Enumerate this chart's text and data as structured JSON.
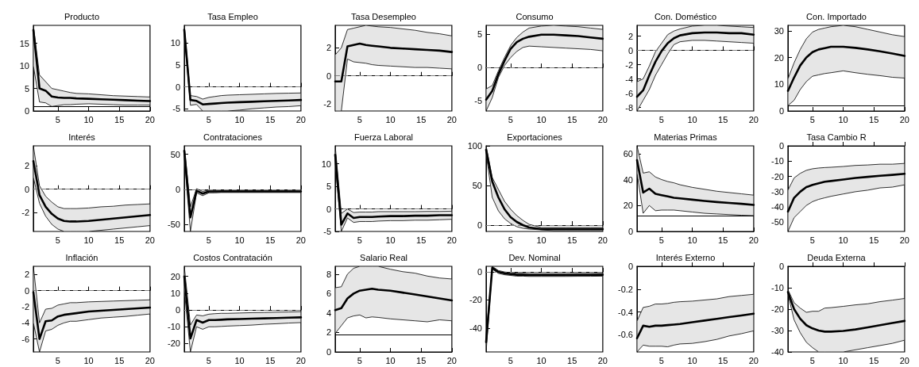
{
  "chart_data": [
    {
      "type": "line",
      "title": "Producto",
      "x": [
        1,
        2,
        3,
        4,
        5,
        6,
        7,
        8,
        10,
        12,
        14,
        16,
        18,
        20
      ],
      "xlim": [
        1,
        20
      ],
      "xticks": [
        5,
        10,
        15,
        20
      ],
      "ylim": [
        0,
        19
      ],
      "yticks": [
        0,
        5,
        10,
        15
      ],
      "series": [
        {
          "color": "#000000",
          "values": [
            18,
            5,
            4.5,
            3.2,
            3,
            2.9,
            2.9,
            2.8,
            2.7,
            2.6,
            2.5,
            2.4,
            2.3,
            2.2
          ],
          "upper": [
            19,
            8,
            6.5,
            5,
            4.7,
            4.4,
            4.1,
            3.9,
            3.8,
            3.6,
            3.4,
            3.3,
            3.2,
            3.1
          ],
          "lower": [
            10,
            2,
            1.8,
            1,
            1.2,
            1.4,
            1.4,
            1.5,
            1.6,
            1.5,
            1.4,
            1.3,
            1.3,
            1.3
          ]
        }
      ],
      "ref_lines": [
        {
          "axis": "y",
          "value": 1,
          "line_style": "solid",
          "color": "#000000"
        }
      ]
    },
    {
      "type": "line",
      "title": "Tasa Empleo",
      "x": [
        1,
        2,
        3,
        4,
        5,
        6,
        7,
        8,
        10,
        12,
        14,
        16,
        18,
        20
      ],
      "xlim": [
        1,
        20
      ],
      "xticks": [
        5,
        10,
        15,
        20
      ],
      "ylim": [
        -5.5,
        14
      ],
      "yticks": [
        -5,
        0,
        5,
        10
      ],
      "series": [
        {
          "color": "#000000",
          "values": [
            13,
            -3,
            -3.2,
            -4,
            -3.9,
            -3.8,
            -3.7,
            -3.6,
            -3.5,
            -3.4,
            -3.3,
            -3.2,
            -3.1,
            -3
          ],
          "upper": [
            14,
            -2,
            -2.2,
            -2.8,
            -2.4,
            -2.2,
            -2,
            -1.9,
            -1.8,
            -1.7,
            -1.6,
            -1.5,
            -1.45,
            -1.4
          ],
          "lower": [
            12,
            -4.2,
            -4,
            -5.5,
            -5.5,
            -5.5,
            -5.5,
            -5.5,
            -5.3,
            -5,
            -4.8,
            -4.6,
            -4.5,
            -4.3
          ]
        }
      ],
      "ref_lines": [
        {
          "axis": "y",
          "value": 0,
          "line_style": "dashed",
          "color": "#808080"
        }
      ]
    },
    {
      "type": "line",
      "title": "Tasa Desempleo",
      "x": [
        1,
        2,
        3,
        4,
        5,
        6,
        7,
        8,
        10,
        12,
        14,
        16,
        18,
        20
      ],
      "xlim": [
        1,
        20
      ],
      "xticks": [
        5,
        10,
        15,
        20
      ],
      "ylim": [
        -2.5,
        3.6
      ],
      "yticks": [
        -2,
        0,
        2
      ],
      "series": [
        {
          "color": "#000000",
          "values": [
            -0.4,
            -0.4,
            2.1,
            2.2,
            2.3,
            2.2,
            2.15,
            2.1,
            2.0,
            1.95,
            1.9,
            1.85,
            1.8,
            1.7
          ],
          "upper": [
            1.5,
            2,
            3.3,
            3.4,
            3.5,
            3.6,
            3.55,
            3.5,
            3.45,
            3.35,
            3.25,
            3.1,
            3.0,
            2.85
          ],
          "lower": [
            -2.5,
            -2.5,
            1.2,
            1.0,
            0.95,
            0.9,
            0.8,
            0.75,
            0.7,
            0.65,
            0.6,
            0.6,
            0.55,
            0.5
          ]
        }
      ],
      "ref_lines": [
        {
          "axis": "y",
          "value": 0,
          "line_style": "dashed",
          "color": "#808080"
        }
      ]
    },
    {
      "type": "line",
      "title": "Consumo",
      "x": [
        1,
        2,
        3,
        4,
        5,
        6,
        7,
        8,
        10,
        12,
        14,
        16,
        18,
        20
      ],
      "xlim": [
        1,
        20
      ],
      "xticks": [
        5,
        10,
        15,
        20
      ],
      "ylim": [
        -6.5,
        6.3
      ],
      "yticks": [
        -5,
        0,
        5
      ],
      "series": [
        {
          "color": "#000000",
          "values": [
            -4.8,
            -3.5,
            -1,
            1,
            2.8,
            3.8,
            4.3,
            4.6,
            4.9,
            4.9,
            4.8,
            4.7,
            4.5,
            4.3
          ],
          "upper": [
            -3.2,
            -2.7,
            -0.5,
            1.5,
            3.3,
            4.5,
            5.3,
            5.9,
            6.2,
            6.3,
            6.2,
            6.1,
            5.9,
            5.7
          ],
          "lower": [
            -6.5,
            -4.5,
            -1.5,
            0.3,
            1.5,
            2.4,
            3,
            3.2,
            3.1,
            3,
            2.9,
            2.8,
            2.7,
            2.5
          ]
        }
      ],
      "ref_lines": [
        {
          "axis": "y",
          "value": 0,
          "line_style": "dashed",
          "color": "#808080"
        }
      ]
    },
    {
      "type": "line",
      "title": "Con. Doméstico",
      "x": [
        1,
        2,
        3,
        4,
        5,
        6,
        7,
        8,
        10,
        12,
        14,
        16,
        18,
        20
      ],
      "xlim": [
        1,
        20
      ],
      "xticks": [
        5,
        10,
        15,
        20
      ],
      "ylim": [
        -8.5,
        3.5
      ],
      "yticks": [
        -8,
        -6,
        -4,
        -2,
        0,
        2
      ],
      "series": [
        {
          "color": "#000000",
          "values": [
            -6.5,
            -5.6,
            -3.5,
            -1.6,
            -0.1,
            1,
            1.7,
            2.1,
            2.4,
            2.5,
            2.5,
            2.4,
            2.4,
            2.2
          ],
          "upper": [
            -4.4,
            -4,
            -2.2,
            -0.2,
            1,
            2.2,
            2.7,
            3,
            3.4,
            3.5,
            3.5,
            3.4,
            3.3,
            3.2
          ],
          "lower": [
            -8.5,
            -7,
            -5.5,
            -3.5,
            -2,
            -0.5,
            0.8,
            1.2,
            1.4,
            1.4,
            1.3,
            1.2,
            1.1,
            1.0
          ]
        }
      ],
      "ref_lines": [
        {
          "axis": "y",
          "value": 0,
          "line_style": "dashed",
          "color": "#808080"
        }
      ]
    },
    {
      "type": "line",
      "title": "Con. Importado",
      "x": [
        1,
        2,
        3,
        4,
        5,
        6,
        7,
        8,
        10,
        12,
        14,
        16,
        18,
        20
      ],
      "xlim": [
        1,
        20
      ],
      "xticks": [
        5,
        10,
        15,
        20
      ],
      "ylim": [
        0,
        32
      ],
      "yticks": [
        0,
        10,
        20,
        30
      ],
      "series": [
        {
          "color": "#000000",
          "values": [
            7.5,
            12.5,
            17,
            20,
            22,
            23,
            23.5,
            24,
            24,
            23.6,
            23,
            22.3,
            21.5,
            20.6
          ],
          "upper": [
            12,
            18,
            23,
            27,
            29.5,
            30.5,
            31,
            31.5,
            32,
            31.5,
            30.5,
            29.5,
            28.5,
            27.8
          ],
          "lower": [
            2,
            4,
            8,
            11,
            13,
            13.5,
            14,
            14.3,
            15,
            14.3,
            13.7,
            13.2,
            12.6,
            12.3
          ]
        }
      ],
      "ref_lines": [
        {
          "axis": "y",
          "value": 2,
          "line_style": "solid",
          "color": "#000000"
        }
      ]
    },
    {
      "type": "line",
      "title": "Interés",
      "x": [
        1,
        2,
        3,
        4,
        5,
        6,
        7,
        8,
        10,
        12,
        14,
        16,
        18,
        20
      ],
      "xlim": [
        1,
        20
      ],
      "xticks": [
        5,
        10,
        15,
        20
      ],
      "ylim": [
        -3.6,
        3.7
      ],
      "yticks": [
        -2,
        0,
        2
      ],
      "series": [
        {
          "color": "#000000",
          "values": [
            2.4,
            -0.5,
            -1.5,
            -2.1,
            -2.5,
            -2.7,
            -2.75,
            -2.75,
            -2.7,
            -2.6,
            -2.5,
            -2.4,
            -2.3,
            -2.2
          ],
          "upper": [
            3.7,
            0.3,
            -0.6,
            -1.1,
            -1.5,
            -1.65,
            -1.65,
            -1.65,
            -1.6,
            -1.5,
            -1.45,
            -1.35,
            -1.3,
            -1.25
          ],
          "lower": [
            1,
            -1.2,
            -2.3,
            -3,
            -3.4,
            -3.6,
            -3.6,
            -3.6,
            -3.6,
            -3.5,
            -3.4,
            -3.3,
            -3.2,
            -3.1
          ]
        }
      ],
      "ref_lines": [
        {
          "axis": "y",
          "value": 0,
          "line_style": "dashed",
          "color": "#808080"
        }
      ]
    },
    {
      "type": "line",
      "title": "Contrataciones",
      "x": [
        1,
        2,
        3,
        4,
        5,
        6,
        7,
        8,
        10,
        12,
        14,
        16,
        18,
        20
      ],
      "xlim": [
        1,
        20
      ],
      "xticks": [
        5,
        10,
        15,
        20
      ],
      "ylim": [
        -60,
        62
      ],
      "yticks": [
        -50,
        0,
        50
      ],
      "series": [
        {
          "color": "#000000",
          "values": [
            55,
            -40,
            -2,
            -6,
            -3,
            -3,
            -3,
            -3,
            -3,
            -3,
            -3,
            -3,
            -3,
            -3
          ],
          "upper": [
            62,
            -25,
            1,
            -3,
            -1,
            -1,
            -1.5,
            -1.5,
            -1.5,
            -1.5,
            -1.5,
            -1.5,
            -1.5,
            -1
          ],
          "lower": [
            45,
            -60,
            -5,
            -9,
            -5,
            -5,
            -4.5,
            -4.5,
            -4.5,
            -4.5,
            -4.5,
            -4.5,
            -4.5,
            -4.5
          ]
        }
      ],
      "ref_lines": [
        {
          "axis": "y",
          "value": 0,
          "line_style": "dashed",
          "color": "#808080"
        }
      ]
    },
    {
      "type": "line",
      "title": "Fuerza Laboral",
      "x": [
        1,
        2,
        3,
        4,
        5,
        6,
        7,
        8,
        10,
        12,
        14,
        16,
        18,
        20
      ],
      "xlim": [
        1,
        20
      ],
      "xticks": [
        5,
        10,
        15,
        20
      ],
      "ylim": [
        -5,
        14
      ],
      "yticks": [
        -5,
        0,
        5,
        10
      ],
      "series": [
        {
          "color": "#000000",
          "values": [
            12,
            -3.5,
            -1,
            -2,
            -1.8,
            -1.8,
            -1.8,
            -1.7,
            -1.6,
            -1.6,
            -1.5,
            -1.5,
            -1.4,
            -1.4
          ],
          "upper": [
            14,
            -1,
            0,
            -0.8,
            -0.7,
            -0.7,
            -0.7,
            -0.6,
            -0.6,
            -0.6,
            -0.6,
            -0.55,
            -0.55,
            -0.5
          ],
          "lower": [
            10,
            -5,
            -2,
            -3,
            -2.8,
            -2.8,
            -2.8,
            -2.7,
            -2.6,
            -2.6,
            -2.5,
            -2.5,
            -2.4,
            -2.3
          ]
        }
      ],
      "ref_lines": [
        {
          "axis": "y",
          "value": 0,
          "line_style": "dashed",
          "color": "#808080"
        }
      ]
    },
    {
      "type": "line",
      "title": "Exportaciones",
      "x": [
        1,
        2,
        3,
        4,
        5,
        6,
        7,
        8,
        10,
        12,
        14,
        16,
        18,
        20
      ],
      "xlim": [
        1,
        20
      ],
      "xticks": [
        5,
        10,
        15,
        20
      ],
      "ylim": [
        -8,
        100
      ],
      "yticks": [
        0,
        50,
        100
      ],
      "series": [
        {
          "color": "#000000",
          "values": [
            95,
            55,
            35,
            20,
            10,
            4,
            0,
            -3,
            -5,
            -5,
            -5,
            -5,
            -5,
            -5
          ],
          "upper": [
            100,
            60,
            45,
            30,
            20,
            12,
            6,
            1,
            -3,
            -3,
            -3,
            -3,
            -3,
            -3
          ],
          "lower": [
            90,
            35,
            18,
            8,
            2,
            -2,
            -4,
            -5,
            -6,
            -7,
            -7,
            -7,
            -7,
            -7
          ]
        }
      ],
      "ref_lines": [
        {
          "axis": "y",
          "value": 0,
          "line_style": "dashed",
          "color": "#808080"
        }
      ]
    },
    {
      "type": "line",
      "title": "Materias Primas",
      "x": [
        1,
        2,
        3,
        4,
        5,
        6,
        7,
        8,
        10,
        12,
        14,
        16,
        18,
        20
      ],
      "xlim": [
        1,
        20
      ],
      "xticks": [
        5,
        10,
        15,
        20
      ],
      "ylim": [
        0,
        66
      ],
      "yticks": [
        0,
        20,
        40,
        60
      ],
      "series": [
        {
          "color": "#000000",
          "values": [
            55,
            30,
            33,
            29,
            28,
            27,
            26,
            25.5,
            24.5,
            23.5,
            22.7,
            22,
            21.3,
            20.5
          ],
          "upper": [
            66,
            45,
            46,
            42,
            40,
            38.5,
            37.5,
            36,
            34,
            32.5,
            31,
            30,
            29,
            28
          ],
          "lower": [
            45,
            14,
            20,
            16,
            16.5,
            16.5,
            16.5,
            16,
            15,
            14,
            13.5,
            13,
            12.5,
            12.2
          ]
        }
      ],
      "ref_lines": [
        {
          "axis": "y",
          "value": 12,
          "line_style": "solid",
          "color": "#000000"
        }
      ]
    },
    {
      "type": "line",
      "title": "Tasa Cambio R",
      "x": [
        1,
        2,
        3,
        4,
        5,
        6,
        7,
        8,
        10,
        12,
        14,
        16,
        18,
        20
      ],
      "xlim": [
        1,
        20
      ],
      "xticks": [
        5,
        10,
        15,
        20
      ],
      "ylim": [
        -56,
        0
      ],
      "yticks": [
        -50,
        -40,
        -30,
        -20,
        -10,
        0
      ],
      "series": [
        {
          "color": "#000000",
          "values": [
            -43,
            -34,
            -30,
            -27,
            -25.5,
            -24.5,
            -23.5,
            -23,
            -22,
            -21,
            -20.3,
            -19.6,
            -19,
            -18.3
          ],
          "upper": [
            -29,
            -21,
            -18,
            -16,
            -15,
            -14.5,
            -14.2,
            -14,
            -13.5,
            -12.8,
            -12.5,
            -12,
            -12,
            -11.5
          ],
          "lower": [
            -56,
            -47,
            -43,
            -39,
            -36.5,
            -35,
            -34,
            -33,
            -31.5,
            -30,
            -29,
            -27.5,
            -27,
            -25.5
          ]
        }
      ]
    },
    {
      "type": "line",
      "title": "Inflación",
      "x": [
        1,
        2,
        3,
        4,
        5,
        6,
        7,
        8,
        10,
        12,
        14,
        16,
        18,
        20
      ],
      "xlim": [
        1,
        20
      ],
      "xticks": [
        5,
        10,
        15,
        20
      ],
      "ylim": [
        -7.6,
        3
      ],
      "yticks": [
        -6,
        -4,
        -2,
        0,
        2
      ],
      "series": [
        {
          "color": "#000000",
          "values": [
            -0.2,
            -6,
            -3.8,
            -3.7,
            -3.2,
            -3,
            -2.9,
            -2.8,
            -2.6,
            -2.5,
            -2.4,
            -2.3,
            -2.2,
            -2.1
          ],
          "upper": [
            3,
            -4,
            -2.3,
            -2.2,
            -1.8,
            -1.65,
            -1.5,
            -1.5,
            -1.4,
            -1.35,
            -1.3,
            -1.25,
            -1.2,
            -1.15
          ],
          "lower": [
            -4,
            -7.6,
            -5,
            -4.8,
            -4.3,
            -4,
            -3.8,
            -3.8,
            -3.6,
            -3.4,
            -3.3,
            -3.2,
            -3.05,
            -2.9
          ]
        }
      ],
      "ref_lines": [
        {
          "axis": "y",
          "value": 0,
          "line_style": "dashed",
          "color": "#808080"
        }
      ]
    },
    {
      "type": "line",
      "title": "Costos Contratación",
      "x": [
        1,
        2,
        3,
        4,
        5,
        6,
        7,
        8,
        10,
        12,
        14,
        16,
        18,
        20
      ],
      "xlim": [
        1,
        20
      ],
      "xticks": [
        5,
        10,
        15,
        20
      ],
      "ylim": [
        -25,
        26
      ],
      "yticks": [
        -20,
        -10,
        0,
        10,
        20
      ],
      "series": [
        {
          "color": "#000000",
          "values": [
            20,
            -17,
            -6,
            -7.5,
            -6,
            -6,
            -5.8,
            -5.6,
            -5.4,
            -5.2,
            -5,
            -4.8,
            -4.6,
            -4.4
          ],
          "upper": [
            26,
            -9,
            -3,
            -3.5,
            -2.5,
            -2.2,
            -2,
            -2,
            -1.8,
            -1.6,
            -1.5,
            -1.3,
            -1.2,
            -1
          ],
          "lower": [
            12,
            -25,
            -10,
            -11.5,
            -10,
            -10,
            -9.8,
            -9.6,
            -9.3,
            -9,
            -8.5,
            -8.2,
            -7.8,
            -7.5
          ]
        }
      ],
      "ref_lines": [
        {
          "axis": "y",
          "value": 0,
          "line_style": "dashed",
          "color": "#808080"
        }
      ]
    },
    {
      "type": "line",
      "title": "Salario Real",
      "x": [
        1,
        2,
        3,
        4,
        5,
        6,
        7,
        8,
        10,
        12,
        14,
        16,
        18,
        20
      ],
      "xlim": [
        1,
        20
      ],
      "xticks": [
        5,
        10,
        15,
        20
      ],
      "ylim": [
        0,
        8.8
      ],
      "yticks": [
        0,
        2,
        4,
        6,
        8
      ],
      "series": [
        {
          "color": "#000000",
          "values": [
            4.3,
            4.5,
            5.5,
            6,
            6.3,
            6.4,
            6.5,
            6.4,
            6.3,
            6.1,
            5.9,
            5.7,
            5.5,
            5.3
          ],
          "upper": [
            6.6,
            6.7,
            8,
            8.6,
            8.8,
            8.8,
            8.8,
            8.8,
            8.5,
            8.25,
            8.1,
            7.8,
            7.6,
            7.5
          ],
          "lower": [
            1.9,
            2.7,
            3.5,
            3.7,
            3.8,
            3.5,
            3.6,
            3.55,
            3.4,
            3.3,
            3.2,
            3.1,
            3.3,
            3.2
          ]
        }
      ],
      "ref_lines": [
        {
          "axis": "y",
          "value": 1.8,
          "line_style": "solid",
          "color": "#000000"
        }
      ]
    },
    {
      "type": "line",
      "title": "Dev. Nominal",
      "x": [
        1,
        2,
        3,
        4,
        5,
        6,
        7,
        8,
        10,
        12,
        14,
        16,
        18,
        20
      ],
      "xlim": [
        1,
        20
      ],
      "xticks": [
        5,
        10,
        15,
        20
      ],
      "ylim": [
        -57,
        4
      ],
      "yticks": [
        -40,
        -20,
        0
      ],
      "series": [
        {
          "color": "#000000",
          "values": [
            -50,
            3,
            0,
            -1,
            -1.5,
            -2,
            -2,
            -2.2,
            -2.2,
            -2.2,
            -2.2,
            -2.1,
            -2.1,
            -2
          ],
          "upper": [
            -45,
            4,
            1,
            0,
            -0.5,
            -1,
            -1,
            -1.2,
            -1.2,
            -1.2,
            -1.2,
            -1.1,
            -1.1,
            -1
          ],
          "lower": [
            -57,
            2,
            -1,
            -2,
            -2.5,
            -3,
            -3,
            -3.2,
            -3.2,
            -3.2,
            -3.2,
            -3.1,
            -3.1,
            -3
          ]
        }
      ],
      "ref_lines": [
        {
          "axis": "y",
          "value": 0,
          "line_style": "dashed",
          "color": "#808080"
        }
      ]
    },
    {
      "type": "line",
      "title": "Interés Externo",
      "x": [
        1,
        2,
        3,
        4,
        5,
        6,
        7,
        8,
        10,
        12,
        14,
        16,
        18,
        20
      ],
      "xlim": [
        1,
        20
      ],
      "xticks": [
        5,
        10,
        15,
        20
      ],
      "ylim": [
        -0.75,
        0
      ],
      "yticks": [
        -0.6,
        -0.4,
        -0.2,
        0
      ],
      "series": [
        {
          "color": "#000000",
          "values": [
            -0.63,
            -0.52,
            -0.53,
            -0.52,
            -0.52,
            -0.515,
            -0.51,
            -0.505,
            -0.49,
            -0.475,
            -0.46,
            -0.445,
            -0.43,
            -0.415
          ],
          "upper": [
            -0.48,
            -0.36,
            -0.35,
            -0.33,
            -0.33,
            -0.325,
            -0.315,
            -0.31,
            -0.305,
            -0.295,
            -0.285,
            -0.265,
            -0.255,
            -0.245
          ],
          "lower": [
            -0.75,
            -0.69,
            -0.7,
            -0.7,
            -0.7,
            -0.705,
            -0.69,
            -0.68,
            -0.675,
            -0.66,
            -0.64,
            -0.61,
            -0.59,
            -0.565
          ]
        }
      ]
    },
    {
      "type": "line",
      "title": "Deuda Externa",
      "x": [
        1,
        2,
        3,
        4,
        5,
        6,
        7,
        8,
        10,
        12,
        14,
        16,
        18,
        20
      ],
      "xlim": [
        1,
        20
      ],
      "xticks": [
        5,
        10,
        15,
        20
      ],
      "ylim": [
        -40,
        0
      ],
      "yticks": [
        -40,
        -30,
        -20,
        -10,
        0
      ],
      "series": [
        {
          "color": "#000000",
          "values": [
            -12,
            -20,
            -24.5,
            -27.5,
            -29,
            -30,
            -30.5,
            -30.5,
            -30.2,
            -29.5,
            -28.5,
            -27.5,
            -26.5,
            -25.5
          ],
          "upper": [
            -11,
            -17,
            -19.5,
            -21.5,
            -21,
            -21,
            -19.5,
            -19.3,
            -18.7,
            -18,
            -17.5,
            -16.5,
            -15.8,
            -15
          ],
          "lower": [
            -13,
            -25,
            -31,
            -35.5,
            -38,
            -40,
            -40,
            -40,
            -40,
            -39,
            -38,
            -37,
            -36,
            -34.5
          ]
        }
      ]
    }
  ]
}
